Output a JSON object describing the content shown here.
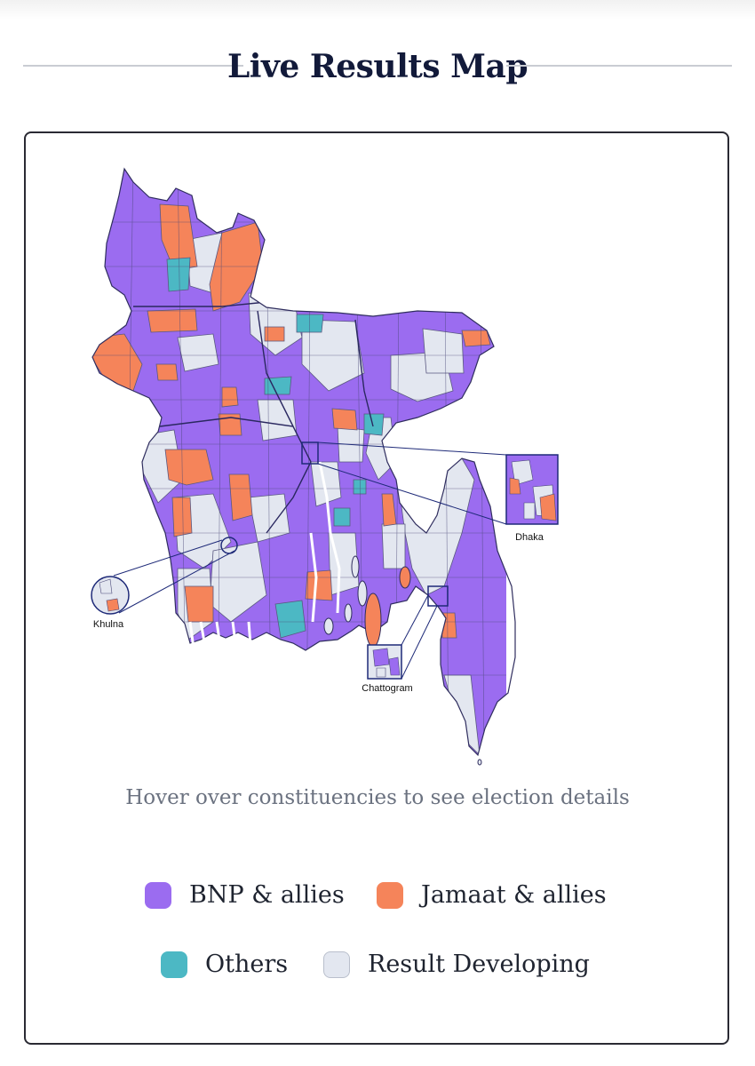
{
  "header": {
    "title": "Live Results Map"
  },
  "map": {
    "insets": {
      "dhaka": "Dhaka",
      "khulna": "Khulna",
      "chattogram": "Chattogram"
    }
  },
  "hint": "Hover over constituencies to see election details",
  "legend": [
    {
      "label": "BNP & allies",
      "color": "#9b6cf0"
    },
    {
      "label": "Jamaat & allies",
      "color": "#f5845a"
    },
    {
      "label": "Others",
      "color": "#4cb8c4"
    },
    {
      "label": "Result Developing",
      "color": "#e3e7f0"
    }
  ],
  "colors": {
    "bnp": "#9b6cf0",
    "jamaat": "#f5845a",
    "others": "#4cb8c4",
    "developing": "#e3e7f0",
    "border": "#2f2d5e",
    "inset_frame": "#1e2a78"
  }
}
